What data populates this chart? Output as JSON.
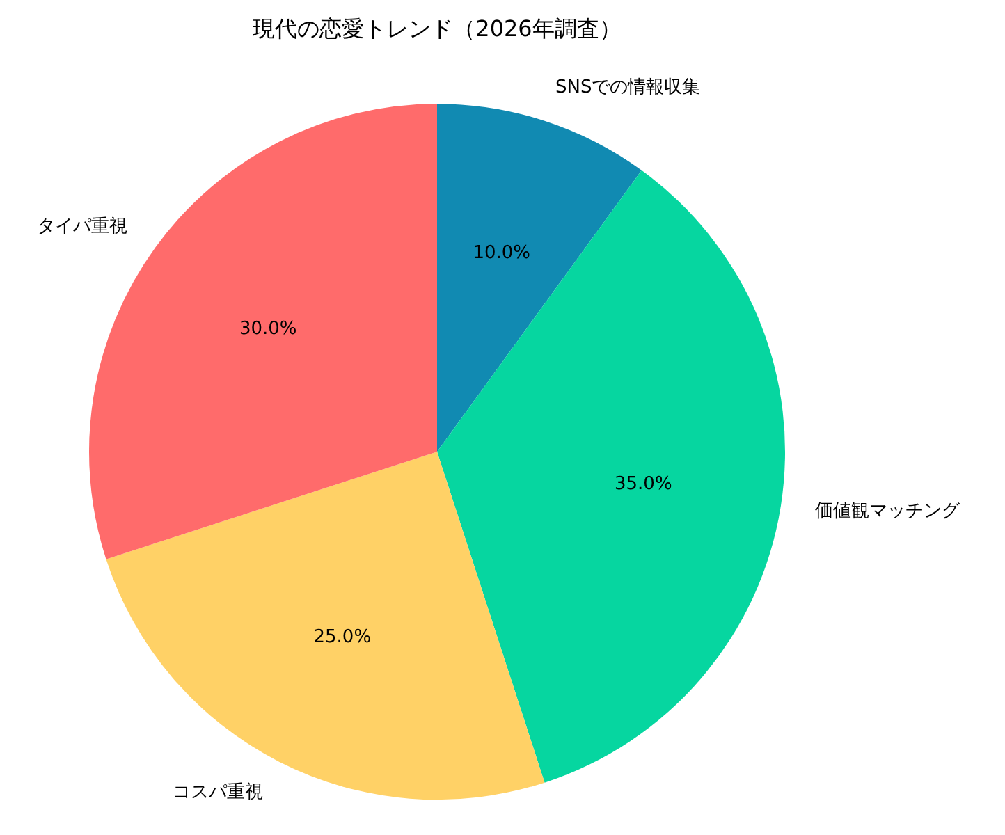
{
  "chart_data": {
    "type": "pie",
    "title": "現代の恋愛トレンド（2026年調査）",
    "categories": [
      "SNSでの情報収集",
      "価値観マッチング",
      "コスパ重視",
      "タイパ重視"
    ],
    "values": [
      10,
      35,
      25,
      30
    ],
    "colors": [
      "#118ab2",
      "#06d6a0",
      "#ffd166",
      "#ff6b6b"
    ],
    "value_labels": [
      "10.0%",
      "35.0%",
      "25.0%",
      "30.0%"
    ],
    "legend": false
  }
}
